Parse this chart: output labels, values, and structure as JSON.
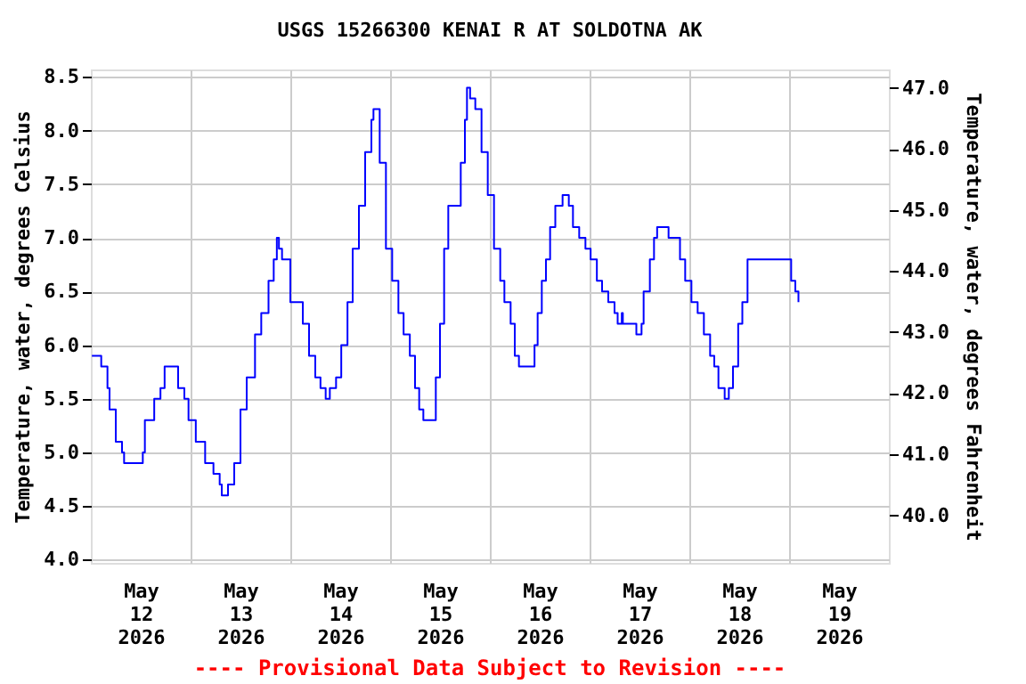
{
  "chart_data": {
    "type": "step",
    "title": "USGS 15266300 KENAI R AT SOLDOTNA AK",
    "ylabel": "Temperature, water, degrees Celsius",
    "y2label": "Temperature, water, degrees Fahrenheit",
    "annotations": [
      "---- Provisional Data Subject to Revision ----"
    ],
    "x": [
      "2026-05-12T00:15",
      "2026-05-12T01:45",
      "2026-05-12T02:30",
      "2026-05-12T04:00",
      "2026-05-12T04:30",
      "2026-05-12T06:00",
      "2026-05-12T07:30",
      "2026-05-12T08:00",
      "2026-05-12T11:15",
      "2026-05-12T12:30",
      "2026-05-12T13:00",
      "2026-05-12T15:15",
      "2026-05-12T16:45",
      "2026-05-12T17:45",
      "2026-05-12T20:15",
      "2026-05-12T21:00",
      "2026-05-12T22:30",
      "2026-05-12T23:30",
      "2026-05-13T01:15",
      "2026-05-13T03:30",
      "2026-05-13T05:30",
      "2026-05-13T07:00",
      "2026-05-13T07:30",
      "2026-05-13T09:00",
      "2026-05-13T10:30",
      "2026-05-13T12:00",
      "2026-05-13T13:30",
      "2026-05-13T15:30",
      "2026-05-13T17:00",
      "2026-05-13T18:45",
      "2026-05-13T20:00",
      "2026-05-13T20:45",
      "2026-05-13T21:15",
      "2026-05-13T22:00",
      "2026-05-13T23:00",
      "2026-05-14T00:00",
      "2026-05-14T01:30",
      "2026-05-14T03:00",
      "2026-05-14T04:30",
      "2026-05-14T06:00",
      "2026-05-14T07:15",
      "2026-05-14T08:30",
      "2026-05-14T09:30",
      "2026-05-14T11:00",
      "2026-05-14T12:15",
      "2026-05-14T13:45",
      "2026-05-14T15:00",
      "2026-05-14T16:30",
      "2026-05-14T18:00",
      "2026-05-14T19:30",
      "2026-05-14T20:00",
      "2026-05-14T21:00",
      "2026-05-14T21:30",
      "2026-05-14T23:00",
      "2026-05-15T00:30",
      "2026-05-15T02:00",
      "2026-05-15T03:15",
      "2026-05-15T04:45",
      "2026-05-15T06:00",
      "2026-05-15T07:00",
      "2026-05-15T08:00",
      "2026-05-15T09:45",
      "2026-05-15T11:00",
      "2026-05-15T12:00",
      "2026-05-15T13:00",
      "2026-05-15T14:00",
      "2026-05-15T16:00",
      "2026-05-15T17:00",
      "2026-05-15T18:00",
      "2026-05-15T18:30",
      "2026-05-15T19:15",
      "2026-05-15T20:30",
      "2026-05-15T22:00",
      "2026-05-15T23:30",
      "2026-05-16T01:00",
      "2026-05-16T02:30",
      "2026-05-16T03:30",
      "2026-05-16T05:00",
      "2026-05-16T06:00",
      "2026-05-16T07:00",
      "2026-05-16T10:00",
      "2026-05-16T10:45",
      "2026-05-16T11:30",
      "2026-05-16T12:30",
      "2026-05-16T13:30",
      "2026-05-16T14:30",
      "2026-05-16T15:45",
      "2026-05-16T17:30",
      "2026-05-16T19:00",
      "2026-05-16T20:00",
      "2026-05-16T21:30",
      "2026-05-16T23:00",
      "2026-05-17T00:15",
      "2026-05-17T01:45",
      "2026-05-17T03:00",
      "2026-05-17T04:30",
      "2026-05-17T06:00",
      "2026-05-17T06:45",
      "2026-05-17T07:45",
      "2026-05-17T08:00",
      "2026-05-17T10:45",
      "2026-05-17T11:15",
      "2026-05-17T12:30",
      "2026-05-17T13:00",
      "2026-05-17T14:30",
      "2026-05-17T15:30",
      "2026-05-17T16:15",
      "2026-05-17T18:00",
      "2026-05-17T19:00",
      "2026-05-17T20:15",
      "2026-05-17T21:45",
      "2026-05-17T23:00",
      "2026-05-18T00:30",
      "2026-05-18T02:00",
      "2026-05-18T03:30",
      "2026-05-18T05:00",
      "2026-05-18T06:00",
      "2026-05-18T07:00",
      "2026-05-18T08:30",
      "2026-05-18T09:30",
      "2026-05-18T10:30",
      "2026-05-18T11:45",
      "2026-05-18T12:45",
      "2026-05-18T14:00",
      "2026-05-18T15:00",
      "2026-05-19T00:00",
      "2026-05-19T00:30",
      "2026-05-19T01:30",
      "2026-05-19T02:15"
    ],
    "series": [
      {
        "color": "#0000ff",
        "values": [
          5.9,
          5.9,
          5.8,
          5.6,
          5.4,
          5.1,
          5.0,
          4.9,
          4.9,
          5.0,
          5.3,
          5.5,
          5.6,
          5.8,
          5.8,
          5.6,
          5.5,
          5.3,
          5.1,
          4.9,
          4.8,
          4.7,
          4.6,
          4.7,
          4.9,
          5.4,
          5.7,
          6.1,
          6.3,
          6.6,
          6.8,
          7.0,
          6.9,
          6.8,
          6.8,
          6.4,
          6.4,
          6.2,
          5.9,
          5.7,
          5.6,
          5.5,
          5.6,
          5.7,
          6.0,
          6.4,
          6.9,
          7.3,
          7.8,
          8.1,
          8.2,
          8.2,
          7.7,
          6.9,
          6.6,
          6.3,
          6.1,
          5.9,
          5.6,
          5.4,
          5.3,
          5.3,
          5.7,
          6.2,
          6.9,
          7.3,
          7.3,
          7.7,
          8.1,
          8.4,
          8.3,
          8.2,
          7.8,
          7.4,
          6.9,
          6.6,
          6.4,
          6.2,
          5.9,
          5.8,
          5.8,
          6.0,
          6.3,
          6.6,
          6.8,
          7.1,
          7.3,
          7.4,
          7.3,
          7.1,
          7.0,
          6.9,
          6.8,
          6.6,
          6.5,
          6.4,
          6.3,
          6.2,
          6.3,
          6.2,
          6.2,
          6.1,
          6.2,
          6.5,
          6.8,
          7.0,
          7.1,
          7.1,
          7.0,
          7.0,
          6.8,
          6.6,
          6.4,
          6.3,
          6.1,
          5.9,
          5.8,
          5.6,
          5.5,
          5.6,
          5.8,
          6.2,
          6.4,
          6.8,
          6.8,
          6.8,
          6.6,
          6.5,
          6.4
        ]
      }
    ],
    "xlim": [
      "2026-05-12T00:00",
      "2026-05-20T00:00"
    ],
    "xticks": [
      {
        "value": "2026-05-12T12:00",
        "label": "May 12 2026"
      },
      {
        "value": "2026-05-13T12:00",
        "label": "May 13 2026"
      },
      {
        "value": "2026-05-14T12:00",
        "label": "May 14 2026"
      },
      {
        "value": "2026-05-15T12:00",
        "label": "May 15 2026"
      },
      {
        "value": "2026-05-16T12:00",
        "label": "May 16 2026"
      },
      {
        "value": "2026-05-17T12:00",
        "label": "May 17 2026"
      },
      {
        "value": "2026-05-18T12:00",
        "label": "May 18 2026"
      },
      {
        "value": "2026-05-19T12:00",
        "label": "May 19 2026"
      },
      {
        "value": "2026-05-13T00:00",
        "label": null
      },
      {
        "value": "2026-05-14T00:00",
        "label": null
      },
      {
        "value": "2026-05-15T00:00",
        "label": null
      },
      {
        "value": "2026-05-16T00:00",
        "label": null
      },
      {
        "value": "2026-05-17T00:00",
        "label": null
      },
      {
        "value": "2026-05-18T00:00",
        "label": null
      },
      {
        "value": "2026-05-19T00:00",
        "label": null
      }
    ],
    "ylim": [
      3.97,
      8.57
    ],
    "yticks": [
      {
        "value": 4,
        "label": "4.0"
      },
      {
        "value": 4.5,
        "label": "4.5"
      },
      {
        "value": 5,
        "label": "5.0"
      },
      {
        "value": 5.5,
        "label": "5.5"
      },
      {
        "value": 6,
        "label": "6.0"
      },
      {
        "value": 6.5,
        "label": "6.5"
      },
      {
        "value": 7,
        "label": "7.0"
      },
      {
        "value": 7.5,
        "label": "7.5"
      },
      {
        "value": 8,
        "label": "8.0"
      },
      {
        "value": 8.5,
        "label": "8.5"
      }
    ],
    "y2lim": [
      39.22,
      47.3
    ],
    "y2ticks": [
      {
        "value": 40,
        "label": "40.0"
      },
      {
        "value": 41,
        "label": "41.0"
      },
      {
        "value": 42,
        "label": "42.0"
      },
      {
        "value": 43,
        "label": "43.0"
      },
      {
        "value": 44,
        "label": "44.0"
      },
      {
        "value": 45,
        "label": "45.0"
      },
      {
        "value": 46,
        "label": "46.0"
      },
      {
        "value": 47,
        "label": "47.0"
      }
    ],
    "grid": true,
    "line_style": "solid",
    "marker": "none"
  }
}
